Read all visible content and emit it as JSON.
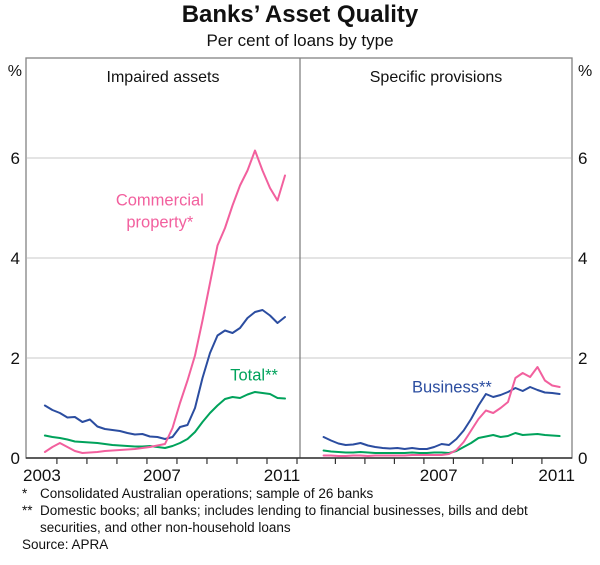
{
  "header": {
    "title": "Banks’ Asset Quality",
    "subtitle": "Per cent of loans by type"
  },
  "colors": {
    "commercial_property": "#f2609e",
    "total": "#00a25b",
    "business": "#2b4da0",
    "grid": "#c9c9c9",
    "frame": "#828282",
    "axis": "#333333",
    "text": "#1a1a1a"
  },
  "chart_data": [
    {
      "type": "line",
      "title": "Impaired assets",
      "unit": "%",
      "ytick_side": "left",
      "ylim": [
        0,
        8
      ],
      "yticks": [
        0,
        2,
        4,
        6
      ],
      "gridlines": [
        2,
        4,
        6
      ],
      "x_range": [
        2002.97,
        2012.1
      ],
      "xtick_labels": [
        {
          "year": 2003.5,
          "text": "2003"
        },
        {
          "year": 2007.5,
          "text": "2007"
        },
        {
          "year": 2011.5,
          "text": "2011"
        }
      ],
      "minor_ticks": [
        2004,
        2005,
        2006,
        2007,
        2008,
        2009,
        2010,
        2011,
        2012
      ],
      "series": [
        {
          "name": "Total**",
          "color": "total",
          "x": [
            2003.6,
            2003.85,
            2004.1,
            2004.35,
            2004.6,
            2004.85,
            2005.1,
            2005.35,
            2005.6,
            2005.85,
            2006.1,
            2006.35,
            2006.6,
            2006.85,
            2007.1,
            2007.35,
            2007.6,
            2007.85,
            2008.1,
            2008.35,
            2008.6,
            2008.85,
            2009.1,
            2009.35,
            2009.6,
            2009.85,
            2010.1,
            2010.35,
            2010.6,
            2010.85,
            2011.1,
            2011.35,
            2011.6
          ],
          "values": [
            0.45,
            0.42,
            0.4,
            0.37,
            0.33,
            0.32,
            0.31,
            0.3,
            0.28,
            0.26,
            0.25,
            0.24,
            0.23,
            0.23,
            0.24,
            0.22,
            0.2,
            0.24,
            0.3,
            0.38,
            0.52,
            0.72,
            0.9,
            1.05,
            1.18,
            1.22,
            1.2,
            1.27,
            1.32,
            1.3,
            1.28,
            1.2,
            1.19
          ]
        },
        {
          "name": "Business**",
          "color": "business",
          "x": [
            2003.6,
            2003.85,
            2004.1,
            2004.35,
            2004.6,
            2004.85,
            2005.1,
            2005.35,
            2005.6,
            2005.85,
            2006.1,
            2006.35,
            2006.6,
            2006.85,
            2007.1,
            2007.35,
            2007.6,
            2007.85,
            2008.1,
            2008.35,
            2008.6,
            2008.85,
            2009.1,
            2009.35,
            2009.6,
            2009.85,
            2010.1,
            2010.35,
            2010.6,
            2010.85,
            2011.1,
            2011.35,
            2011.6
          ],
          "values": [
            1.05,
            0.96,
            0.9,
            0.81,
            0.82,
            0.72,
            0.77,
            0.63,
            0.58,
            0.56,
            0.54,
            0.5,
            0.47,
            0.48,
            0.43,
            0.42,
            0.38,
            0.42,
            0.62,
            0.66,
            1.0,
            1.6,
            2.1,
            2.45,
            2.55,
            2.5,
            2.6,
            2.8,
            2.92,
            2.96,
            2.85,
            2.7,
            2.82
          ]
        },
        {
          "name": "Commercial property*",
          "color": "commercial_property",
          "x": [
            2003.6,
            2003.85,
            2004.1,
            2004.35,
            2004.6,
            2004.85,
            2005.1,
            2005.35,
            2005.6,
            2005.85,
            2006.1,
            2006.35,
            2006.6,
            2006.85,
            2007.1,
            2007.35,
            2007.6,
            2007.85,
            2008.1,
            2008.35,
            2008.6,
            2008.85,
            2009.1,
            2009.35,
            2009.6,
            2009.85,
            2010.1,
            2010.35,
            2010.6,
            2010.85,
            2011.1,
            2011.35,
            2011.6
          ],
          "values": [
            0.12,
            0.22,
            0.3,
            0.22,
            0.14,
            0.1,
            0.11,
            0.12,
            0.14,
            0.15,
            0.16,
            0.17,
            0.18,
            0.2,
            0.22,
            0.25,
            0.28,
            0.6,
            1.1,
            1.55,
            2.05,
            2.75,
            3.5,
            4.25,
            4.6,
            5.05,
            5.45,
            5.75,
            6.15,
            5.75,
            5.4,
            5.15,
            5.65
          ]
        }
      ],
      "labels": [
        {
          "text": [
            "Commercial",
            "property*"
          ],
          "color": "commercial_property",
          "anchor_year": 2007.43,
          "anchor_value": 4.94
        },
        {
          "text": [
            "Total**"
          ],
          "color": "total",
          "anchor_year": 2010.57,
          "anchor_value": 1.66
        }
      ]
    },
    {
      "type": "line",
      "title": "Specific provisions",
      "unit": "%",
      "ytick_side": "right",
      "ylim": [
        0,
        8
      ],
      "yticks": [
        0,
        2,
        4,
        6
      ],
      "gridlines": [
        2,
        4,
        6
      ],
      "x_range": [
        2002.8,
        2012.02
      ],
      "xtick_labels": [
        {
          "year": 2007.5,
          "text": "2007"
        },
        {
          "year": 2011.5,
          "text": "2011"
        }
      ],
      "minor_ticks": [
        2004,
        2005,
        2006,
        2007,
        2008,
        2009,
        2010,
        2011
      ],
      "series": [
        {
          "name": "Total**",
          "color": "total",
          "x": [
            2003.6,
            2003.85,
            2004.1,
            2004.35,
            2004.6,
            2004.85,
            2005.1,
            2005.35,
            2005.6,
            2005.85,
            2006.1,
            2006.35,
            2006.6,
            2006.85,
            2007.1,
            2007.35,
            2007.6,
            2007.85,
            2008.1,
            2008.35,
            2008.6,
            2008.85,
            2009.1,
            2009.35,
            2009.6,
            2009.85,
            2010.1,
            2010.35,
            2010.6,
            2010.85,
            2011.1,
            2011.35,
            2011.6
          ],
          "values": [
            0.15,
            0.13,
            0.12,
            0.11,
            0.11,
            0.12,
            0.11,
            0.1,
            0.1,
            0.1,
            0.1,
            0.1,
            0.11,
            0.1,
            0.1,
            0.11,
            0.11,
            0.1,
            0.14,
            0.22,
            0.3,
            0.4,
            0.43,
            0.46,
            0.42,
            0.44,
            0.5,
            0.46,
            0.47,
            0.48,
            0.46,
            0.45,
            0.44
          ]
        },
        {
          "name": "Business**",
          "color": "business",
          "x": [
            2003.6,
            2003.85,
            2004.1,
            2004.35,
            2004.6,
            2004.85,
            2005.1,
            2005.35,
            2005.6,
            2005.85,
            2006.1,
            2006.35,
            2006.6,
            2006.85,
            2007.1,
            2007.35,
            2007.6,
            2007.85,
            2008.1,
            2008.35,
            2008.6,
            2008.85,
            2009.1,
            2009.35,
            2009.6,
            2009.85,
            2010.1,
            2010.35,
            2010.6,
            2010.85,
            2011.1,
            2011.35,
            2011.6
          ],
          "values": [
            0.42,
            0.35,
            0.29,
            0.26,
            0.27,
            0.3,
            0.25,
            0.22,
            0.2,
            0.19,
            0.2,
            0.18,
            0.2,
            0.18,
            0.18,
            0.22,
            0.28,
            0.26,
            0.38,
            0.55,
            0.78,
            1.05,
            1.28,
            1.22,
            1.26,
            1.32,
            1.4,
            1.34,
            1.42,
            1.36,
            1.31,
            1.3,
            1.28
          ]
        },
        {
          "name": "Commercial property*",
          "color": "commercial_property",
          "x": [
            2003.6,
            2003.85,
            2004.1,
            2004.35,
            2004.6,
            2004.85,
            2005.1,
            2005.35,
            2005.6,
            2005.85,
            2006.1,
            2006.35,
            2006.6,
            2006.85,
            2007.1,
            2007.35,
            2007.6,
            2007.85,
            2008.1,
            2008.35,
            2008.6,
            2008.85,
            2009.1,
            2009.35,
            2009.6,
            2009.85,
            2010.1,
            2010.35,
            2010.6,
            2010.85,
            2011.1,
            2011.35,
            2011.6
          ],
          "values": [
            0.05,
            0.05,
            0.04,
            0.04,
            0.05,
            0.05,
            0.04,
            0.05,
            0.05,
            0.05,
            0.05,
            0.05,
            0.06,
            0.06,
            0.06,
            0.06,
            0.06,
            0.08,
            0.16,
            0.32,
            0.55,
            0.78,
            0.95,
            0.9,
            1.0,
            1.12,
            1.6,
            1.7,
            1.62,
            1.82,
            1.55,
            1.45,
            1.42
          ]
        }
      ],
      "labels": [
        {
          "text": [
            "Business**"
          ],
          "color": "business",
          "anchor_year": 2007.95,
          "anchor_value": 1.42
        }
      ]
    }
  ],
  "footnotes": [
    {
      "marker": "*",
      "text": "Consolidated Australian operations; sample of 26 banks"
    },
    {
      "marker": "**",
      "text": "Domestic books; all banks; includes lending to financial businesses, bills and debt securities, and other non-household loans"
    }
  ],
  "source": "Source: APRA"
}
